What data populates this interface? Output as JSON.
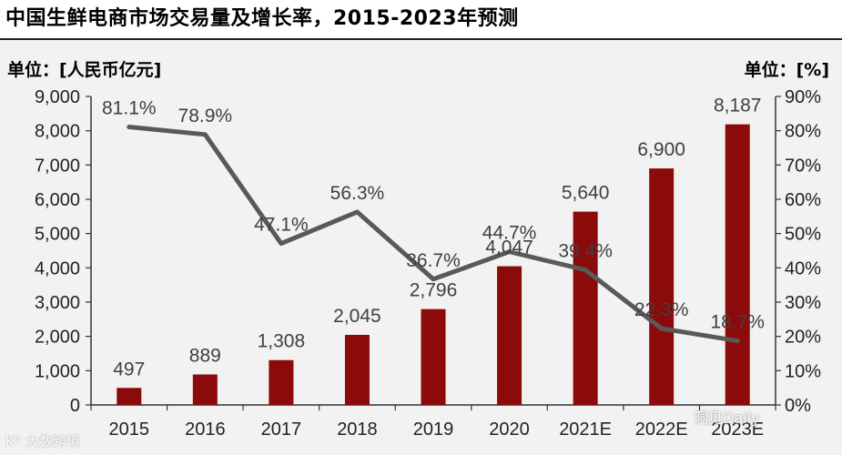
{
  "title": "中国生鲜电商市场交易量及增长率，2015-2023年预测",
  "left_unit": "单位：[人民币亿元]",
  "right_unit": "单位：[%]",
  "watermarks": {
    "left": "Kᴼ 大数跨境",
    "right": "洞见Daily"
  },
  "colors": {
    "bar": "#8b0a0a",
    "line": "#595959",
    "axis": "#333333",
    "label": "#404040"
  },
  "chart_data": {
    "type": "bar",
    "categories": [
      "2015",
      "2016",
      "2017",
      "2018",
      "2019",
      "2020",
      "2021E",
      "2022E",
      "2023E"
    ],
    "series": [
      {
        "name": "",
        "type": "bar",
        "axis": "left",
        "values": [
          497,
          889,
          1308,
          2045,
          2796,
          4047,
          5640,
          6900,
          8187
        ],
        "labels": [
          "497",
          "889",
          "1,308",
          "2,045",
          "2,796",
          "4,047",
          "5,640",
          "6,900",
          "8,187"
        ]
      },
      {
        "name": "",
        "type": "line",
        "axis": "right",
        "values": [
          81.1,
          78.9,
          47.1,
          56.3,
          36.7,
          44.7,
          39.4,
          22.3,
          18.7
        ],
        "labels": [
          "81.1%",
          "78.9%",
          "47.1%",
          "56.3%",
          "36.7%",
          "44.7%",
          "39.4%",
          "22.3%",
          "18.7%"
        ]
      }
    ],
    "y_left": {
      "min": 0,
      "max": 9000,
      "ticks": [
        "0",
        "1,000",
        "2,000",
        "3,000",
        "4,000",
        "5,000",
        "6,000",
        "7,000",
        "8,000",
        "9,000"
      ]
    },
    "y_right": {
      "min": 0,
      "max": 90,
      "ticks": [
        "0%",
        "10%",
        "20%",
        "30%",
        "40%",
        "50%",
        "60%",
        "70%",
        "80%",
        "90%"
      ]
    },
    "grid": false
  }
}
